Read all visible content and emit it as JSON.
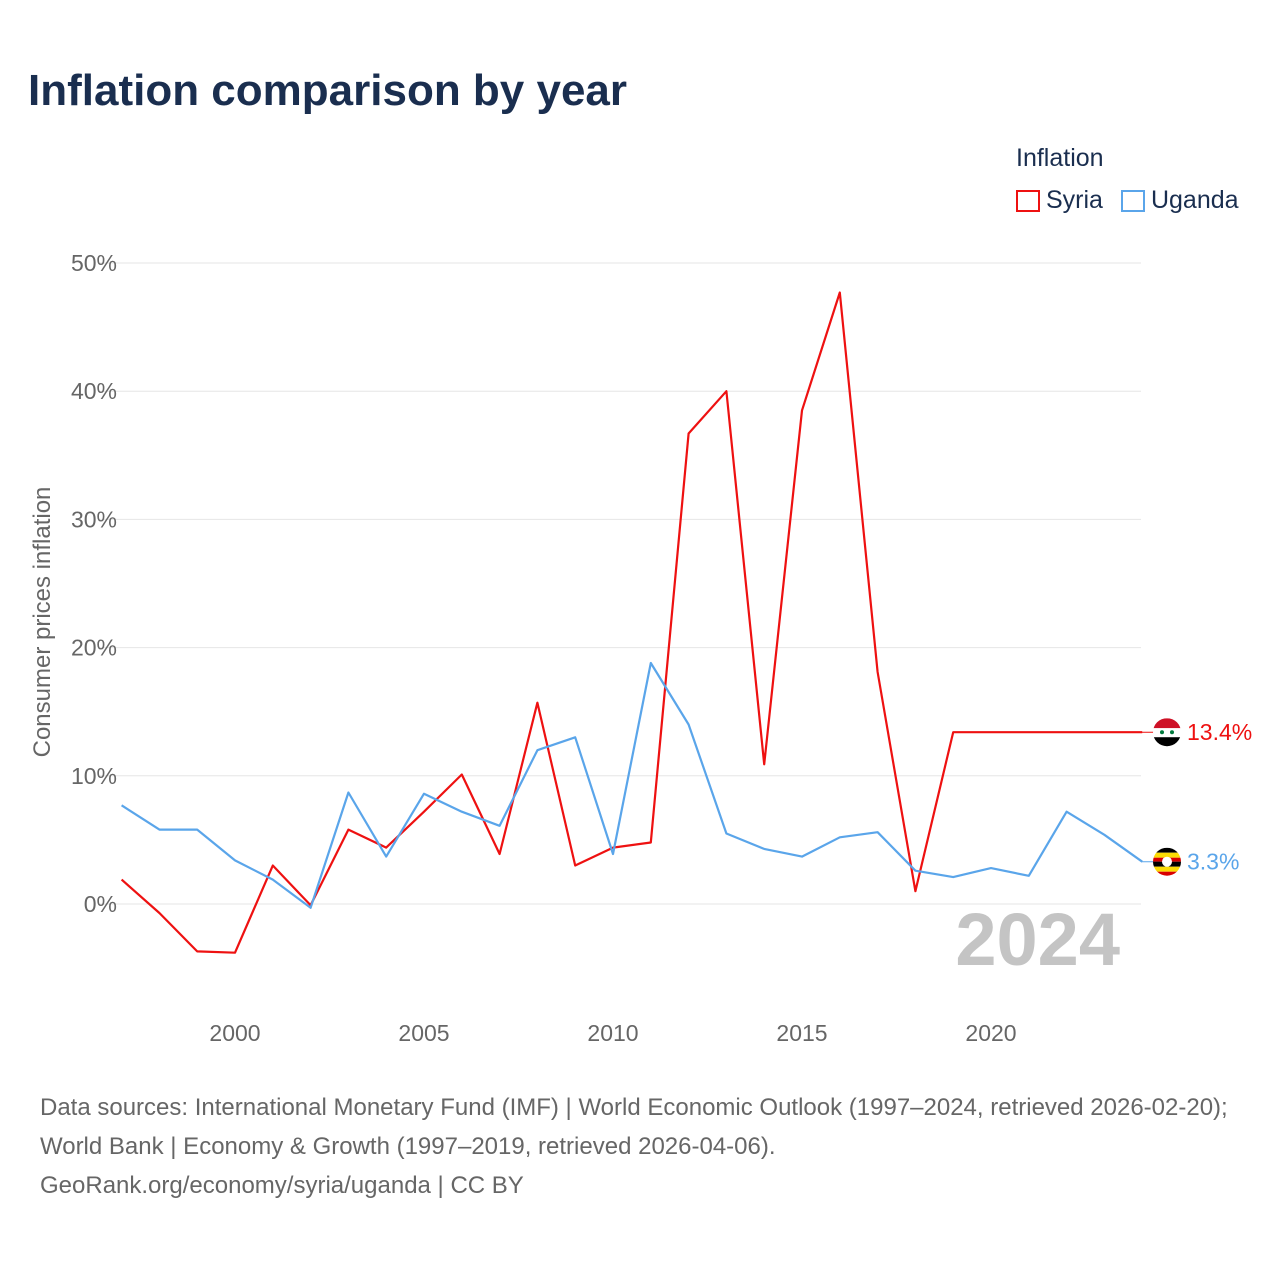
{
  "title": "Inflation comparison by year",
  "legend": {
    "title": "Inflation",
    "items": [
      {
        "name": "Syria",
        "color": "#ee1111"
      },
      {
        "name": "Uganda",
        "color": "#5aa5ea"
      }
    ]
  },
  "source": {
    "line1": "Data sources: International Monetary Fund (IMF) | World Economic Outlook (1997–2024, retrieved 2026-02-20); World Bank | Economy & Growth (1997–2019, retrieved 2026-04-06).",
    "line2": "GeoRank.org/economy/syria/uganda | CC BY"
  },
  "chart_data": {
    "type": "line",
    "title": "Inflation comparison by year",
    "xlabel": "",
    "ylabel": "Consumer prices inflation",
    "xlim": [
      1997,
      2024
    ],
    "ylim": [
      -8,
      52
    ],
    "yticks": [
      0,
      10,
      20,
      30,
      40,
      50
    ],
    "ytick_labels": [
      "0%",
      "10%",
      "20%",
      "30%",
      "40%",
      "50%"
    ],
    "xticks": [
      2000,
      2005,
      2010,
      2015,
      2020
    ],
    "xtick_labels": [
      "2000",
      "2005",
      "2010",
      "2015",
      "2020"
    ],
    "grid": true,
    "year_watermark": "2024",
    "x": [
      1997,
      1998,
      1999,
      2000,
      2001,
      2002,
      2003,
      2004,
      2005,
      2006,
      2007,
      2008,
      2009,
      2010,
      2011,
      2012,
      2013,
      2014,
      2015,
      2016,
      2017,
      2018,
      2019,
      2020,
      2021,
      2022,
      2023,
      2024
    ],
    "series": [
      {
        "name": "Syria",
        "color": "#ee1111",
        "end_label": "13.4%",
        "values": [
          1.9,
          -0.7,
          -3.7,
          -3.8,
          3.0,
          -0.1,
          5.8,
          4.4,
          7.2,
          10.1,
          3.9,
          15.7,
          3.0,
          4.4,
          4.8,
          36.7,
          40.0,
          10.9,
          38.5,
          47.7,
          18.1,
          1.0,
          13.4,
          13.4,
          13.4,
          13.4,
          13.4,
          13.4
        ]
      },
      {
        "name": "Uganda",
        "color": "#5aa5ea",
        "end_label": "3.3%",
        "values": [
          7.7,
          5.8,
          5.8,
          3.4,
          1.9,
          -0.3,
          8.7,
          3.7,
          8.6,
          7.2,
          6.1,
          12.0,
          13.0,
          3.9,
          18.8,
          14.0,
          5.5,
          4.3,
          3.7,
          5.2,
          5.6,
          2.6,
          2.1,
          2.8,
          2.2,
          7.2,
          5.4,
          3.3
        ]
      }
    ]
  }
}
